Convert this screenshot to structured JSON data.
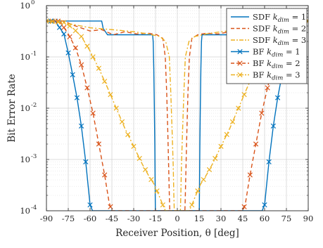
{
  "chart_data": {
    "type": "line",
    "title": "",
    "xlabel": "Receiver Position, θ [deg]",
    "ylabel": "Bit Error Rate",
    "xlim": [
      -90,
      90
    ],
    "ylim": [
      0.0001,
      1
    ],
    "yscale": "log",
    "grid": true,
    "xticks": [
      -90,
      -75,
      -60,
      -45,
      -30,
      -15,
      0,
      15,
      30,
      45,
      60,
      75,
      90
    ],
    "xtick_labels": [
      "-90",
      "-75",
      "-60",
      "-45",
      "-30",
      "-15",
      "0",
      "15",
      "30",
      "45",
      "60",
      "75",
      "90"
    ],
    "yticks": [
      0.0001,
      0.001,
      0.01,
      0.1,
      1
    ],
    "ytick_labels": [
      {
        "base": "10",
        "exp": "-4"
      },
      {
        "base": "10",
        "exp": "-3"
      },
      {
        "base": "10",
        "exp": "-2"
      },
      {
        "base": "10",
        "exp": "-1"
      },
      {
        "base": "10",
        "exp": "0"
      }
    ],
    "legend_position": "top-right",
    "series": [
      {
        "name": "SDF",
        "kdim": "1",
        "color": "#0072BD",
        "dash": "solid",
        "marker": "none",
        "x": [
          -90,
          -75,
          -70,
          -65,
          -63,
          -52,
          -51,
          -48,
          -30,
          -20,
          -17,
          -16.6,
          -16.2,
          -15.8,
          -15.5,
          -15.3,
          -15.1,
          15.1,
          15.3,
          15.5,
          15.8,
          16.2,
          16.6,
          17,
          20,
          30,
          48,
          51,
          52,
          63,
          65,
          70,
          75,
          90
        ],
        "y": [
          0.5,
          0.5,
          0.5,
          0.5,
          0.5,
          0.5,
          0.36,
          0.27,
          0.27,
          0.27,
          0.27,
          0.2,
          0.06,
          0.01,
          0.002,
          0.0004,
          0.0001,
          0.0001,
          0.0004,
          0.002,
          0.01,
          0.06,
          0.2,
          0.27,
          0.27,
          0.27,
          0.27,
          0.36,
          0.5,
          0.5,
          0.5,
          0.5,
          0.5,
          0.5
        ]
      },
      {
        "name": "SDF",
        "kdim": "2",
        "color": "#D95319",
        "dash": "dashed",
        "marker": "none",
        "x": [
          -90,
          -78,
          -72,
          -60,
          -52,
          -44,
          -36,
          -28,
          -20,
          -14,
          -10,
          -8.3,
          -7.3,
          -6.5,
          -5.9,
          -5.5,
          -5.2,
          5.2,
          5.5,
          5.9,
          6.5,
          7.3,
          8.3,
          10,
          14,
          20,
          28,
          36,
          44,
          52,
          60,
          72,
          78,
          90
        ],
        "y": [
          0.5,
          0.5,
          0.42,
          0.32,
          0.34,
          0.27,
          0.31,
          0.28,
          0.29,
          0.27,
          0.23,
          0.1,
          0.02,
          0.003,
          0.0006,
          0.0002,
          0.0001,
          0.0001,
          0.0002,
          0.0006,
          0.003,
          0.02,
          0.1,
          0.23,
          0.27,
          0.29,
          0.28,
          0.31,
          0.27,
          0.34,
          0.32,
          0.42,
          0.5,
          0.5
        ]
      },
      {
        "name": "SDF",
        "kdim": "3",
        "color": "#EDB120",
        "dash": "dashdot",
        "marker": "none",
        "x": [
          -90,
          -80,
          -70,
          -60,
          -50,
          -40,
          -30,
          -20,
          -12,
          -8,
          -5.5,
          -4.5,
          -3.5,
          -2.8,
          -2.4,
          -2.1,
          2.1,
          2.4,
          2.8,
          3.5,
          4.5,
          5.5,
          8,
          12,
          20,
          30,
          40,
          50,
          60,
          70,
          80,
          90
        ],
        "y": [
          0.5,
          0.47,
          0.42,
          0.37,
          0.35,
          0.33,
          0.31,
          0.28,
          0.25,
          0.2,
          0.1,
          0.02,
          0.003,
          0.0007,
          0.0002,
          0.0001,
          0.0001,
          0.0002,
          0.0007,
          0.003,
          0.02,
          0.1,
          0.2,
          0.25,
          0.28,
          0.31,
          0.33,
          0.35,
          0.37,
          0.42,
          0.47,
          0.5
        ]
      },
      {
        "name": "BF",
        "kdim": "1",
        "color": "#0072BD",
        "dash": "solid",
        "marker": "x",
        "x": [
          -90,
          -84,
          -78,
          -75,
          -72,
          -69,
          -66,
          -63,
          -60,
          -58.3,
          58.3,
          60,
          63,
          66,
          69,
          72,
          75,
          78,
          84,
          90
        ],
        "y": [
          0.5,
          0.5,
          0.28,
          0.12,
          0.045,
          0.016,
          0.0045,
          0.0009,
          0.00013,
          0.0001,
          0.0001,
          0.00013,
          0.0009,
          0.0045,
          0.016,
          0.045,
          0.12,
          0.28,
          0.5,
          0.5
        ],
        "markers_x": [
          -90,
          -87,
          -84,
          -81,
          -78,
          -75,
          -72,
          -69,
          -66,
          -63,
          -60,
          60,
          63,
          66,
          69,
          72,
          75,
          78,
          81,
          84,
          87,
          90
        ]
      },
      {
        "name": "BF",
        "kdim": "2",
        "color": "#D95319",
        "dash": "dashed",
        "marker": "x",
        "x": [
          -90,
          -81,
          -75,
          -70,
          -66,
          -62,
          -58,
          -54,
          -50,
          -47,
          -45.2,
          45.2,
          47,
          50,
          54,
          58,
          62,
          66,
          70,
          75,
          81,
          90
        ],
        "y": [
          0.5,
          0.5,
          0.28,
          0.15,
          0.07,
          0.025,
          0.008,
          0.002,
          0.0005,
          0.00015,
          0.0001,
          0.0001,
          0.00015,
          0.0005,
          0.002,
          0.008,
          0.025,
          0.07,
          0.15,
          0.28,
          0.5,
          0.5
        ],
        "markers_x": [
          -90,
          -86,
          -82,
          -78,
          -74,
          -70,
          -66,
          -62,
          -58,
          -54,
          -50,
          -46,
          46,
          50,
          54,
          58,
          62,
          66,
          70,
          74,
          78,
          82,
          86,
          90
        ]
      },
      {
        "name": "BF",
        "kdim": "3",
        "color": "#EDB120",
        "dash": "dashdot",
        "marker": "x",
        "x": [
          -90,
          -78,
          -72,
          -66,
          -60,
          -54,
          -48,
          -42,
          -36,
          -30,
          -24,
          -20,
          -16,
          -12,
          -10,
          -8.2,
          8.2,
          10,
          12,
          16,
          20,
          24,
          30,
          36,
          42,
          48,
          54,
          60,
          66,
          72,
          78,
          90
        ],
        "y": [
          0.5,
          0.47,
          0.37,
          0.25,
          0.13,
          0.06,
          0.025,
          0.01,
          0.004,
          0.0018,
          0.0008,
          0.0005,
          0.00033,
          0.00018,
          0.00013,
          0.0001,
          0.0001,
          0.00013,
          0.00018,
          0.00033,
          0.0005,
          0.0008,
          0.0018,
          0.004,
          0.01,
          0.025,
          0.06,
          0.13,
          0.25,
          0.37,
          0.47,
          0.5
        ],
        "markers_x": [
          -90,
          -86,
          -82,
          -78,
          -74,
          -70,
          -66,
          -62,
          -58,
          -54,
          -50,
          -46,
          -42,
          -38,
          -34,
          -30,
          -26,
          -22,
          -18,
          -14,
          -10,
          10,
          14,
          18,
          22,
          26,
          30,
          34,
          38,
          42,
          46,
          50,
          54,
          58,
          62,
          66,
          70,
          74,
          78,
          82,
          86,
          90
        ]
      }
    ]
  }
}
